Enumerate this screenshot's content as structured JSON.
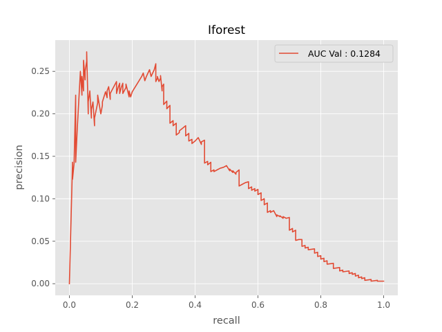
{
  "chart_data": {
    "type": "line",
    "title": "Iforest",
    "xlabel": "recall",
    "ylabel": "precision",
    "xlim": [
      -0.045,
      1.045
    ],
    "ylim": [
      -0.0137,
      0.2868
    ],
    "xticks": [
      0.0,
      0.2,
      0.4,
      0.6,
      0.8,
      1.0
    ],
    "xtick_labels": [
      "0.0",
      "0.2",
      "0.4",
      "0.6",
      "0.8",
      "1.0"
    ],
    "yticks": [
      0.0,
      0.05,
      0.1,
      0.15,
      0.2,
      0.25
    ],
    "ytick_labels": [
      "0.00",
      "0.05",
      "0.10",
      "0.15",
      "0.20",
      "0.25"
    ],
    "grid": true,
    "legend_position": "upper right",
    "colors": {
      "background": "#e5e5e5",
      "grid": "#ffffff",
      "line": "#e24a33",
      "legend_border": "#cccccc"
    },
    "series": [
      {
        "name": "AUC Val : 0.1284",
        "x": [
          0.0,
          0.01,
          0.01,
          0.015,
          0.015,
          0.02,
          0.02,
          0.025,
          0.035,
          0.04,
          0.04,
          0.045,
          0.045,
          0.05,
          0.05,
          0.055,
          0.055,
          0.06,
          0.06,
          0.065,
          0.07,
          0.07,
          0.075,
          0.08,
          0.08,
          0.09,
          0.09,
          0.1,
          0.105,
          0.105,
          0.115,
          0.12,
          0.12,
          0.125,
          0.13,
          0.13,
          0.14,
          0.15,
          0.15,
          0.155,
          0.16,
          0.16,
          0.165,
          0.17,
          0.17,
          0.18,
          0.18,
          0.19,
          0.19,
          0.195,
          0.2,
          0.21,
          0.22,
          0.23,
          0.235,
          0.24,
          0.245,
          0.25,
          0.255,
          0.26,
          0.265,
          0.27,
          0.275,
          0.275,
          0.28,
          0.28,
          0.285,
          0.29,
          0.29,
          0.295,
          0.295,
          0.3,
          0.3,
          0.31,
          0.31,
          0.32,
          0.32,
          0.33,
          0.33,
          0.34,
          0.34,
          0.35,
          0.35,
          0.36,
          0.37,
          0.37,
          0.38,
          0.38,
          0.39,
          0.39,
          0.4,
          0.41,
          0.42,
          0.42,
          0.43,
          0.43,
          0.44,
          0.44,
          0.45,
          0.45,
          0.46,
          0.46,
          0.47,
          0.48,
          0.49,
          0.5,
          0.51,
          0.51,
          0.52,
          0.52,
          0.53,
          0.53,
          0.54,
          0.54,
          0.55,
          0.56,
          0.57,
          0.57,
          0.58,
          0.58,
          0.59,
          0.59,
          0.6,
          0.6,
          0.61,
          0.61,
          0.62,
          0.62,
          0.63,
          0.63,
          0.64,
          0.64,
          0.65,
          0.66,
          0.66,
          0.67,
          0.67,
          0.68,
          0.68,
          0.69,
          0.7,
          0.7,
          0.71,
          0.71,
          0.72,
          0.72,
          0.73,
          0.74,
          0.74,
          0.75,
          0.75,
          0.76,
          0.76,
          0.78,
          0.78,
          0.79,
          0.79,
          0.8,
          0.8,
          0.81,
          0.81,
          0.82,
          0.82,
          0.84,
          0.84,
          0.86,
          0.86,
          0.87,
          0.87,
          0.89,
          0.89,
          0.9,
          0.9,
          0.91,
          0.91,
          0.92,
          0.92,
          0.93,
          0.93,
          0.94,
          0.94,
          0.96,
          0.96,
          0.98,
          0.98,
          1.0
        ],
        "y": [
          0.0,
          0.143,
          0.123,
          0.142,
          0.143,
          0.222,
          0.143,
          0.182,
          0.25,
          0.222,
          0.244,
          0.227,
          0.263,
          0.24,
          0.25,
          0.262,
          0.273,
          0.2,
          0.214,
          0.227,
          0.195,
          0.205,
          0.214,
          0.186,
          0.195,
          0.213,
          0.222,
          0.2,
          0.21,
          0.214,
          0.226,
          0.219,
          0.227,
          0.232,
          0.217,
          0.224,
          0.231,
          0.238,
          0.224,
          0.231,
          0.236,
          0.224,
          0.231,
          0.236,
          0.224,
          0.231,
          0.235,
          0.22,
          0.227,
          0.22,
          0.226,
          0.232,
          0.238,
          0.244,
          0.248,
          0.239,
          0.244,
          0.248,
          0.252,
          0.244,
          0.248,
          0.252,
          0.259,
          0.238,
          0.242,
          0.244,
          0.238,
          0.242,
          0.245,
          0.227,
          0.232,
          0.235,
          0.211,
          0.215,
          0.206,
          0.21,
          0.189,
          0.192,
          0.186,
          0.189,
          0.175,
          0.178,
          0.18,
          0.183,
          0.186,
          0.174,
          0.177,
          0.168,
          0.17,
          0.165,
          0.168,
          0.172,
          0.164,
          0.167,
          0.169,
          0.142,
          0.144,
          0.14,
          0.143,
          0.132,
          0.134,
          0.132,
          0.134,
          0.136,
          0.137,
          0.139,
          0.133,
          0.135,
          0.131,
          0.133,
          0.129,
          0.131,
          0.134,
          0.115,
          0.117,
          0.119,
          0.12,
          0.112,
          0.114,
          0.11,
          0.112,
          0.109,
          0.111,
          0.105,
          0.107,
          0.098,
          0.1,
          0.093,
          0.095,
          0.084,
          0.086,
          0.084,
          0.086,
          0.079,
          0.081,
          0.079,
          0.08,
          0.077,
          0.079,
          0.077,
          0.078,
          0.063,
          0.065,
          0.061,
          0.063,
          0.051,
          0.052,
          0.052,
          0.044,
          0.045,
          0.042,
          0.043,
          0.04,
          0.041,
          0.036,
          0.037,
          0.032,
          0.033,
          0.029,
          0.03,
          0.026,
          0.027,
          0.023,
          0.024,
          0.018,
          0.019,
          0.015,
          0.016,
          0.014,
          0.015,
          0.012,
          0.013,
          0.011,
          0.012,
          0.009,
          0.01,
          0.007,
          0.008,
          0.006,
          0.007,
          0.004,
          0.005,
          0.003,
          0.004,
          0.003,
          0.003
        ]
      }
    ]
  }
}
